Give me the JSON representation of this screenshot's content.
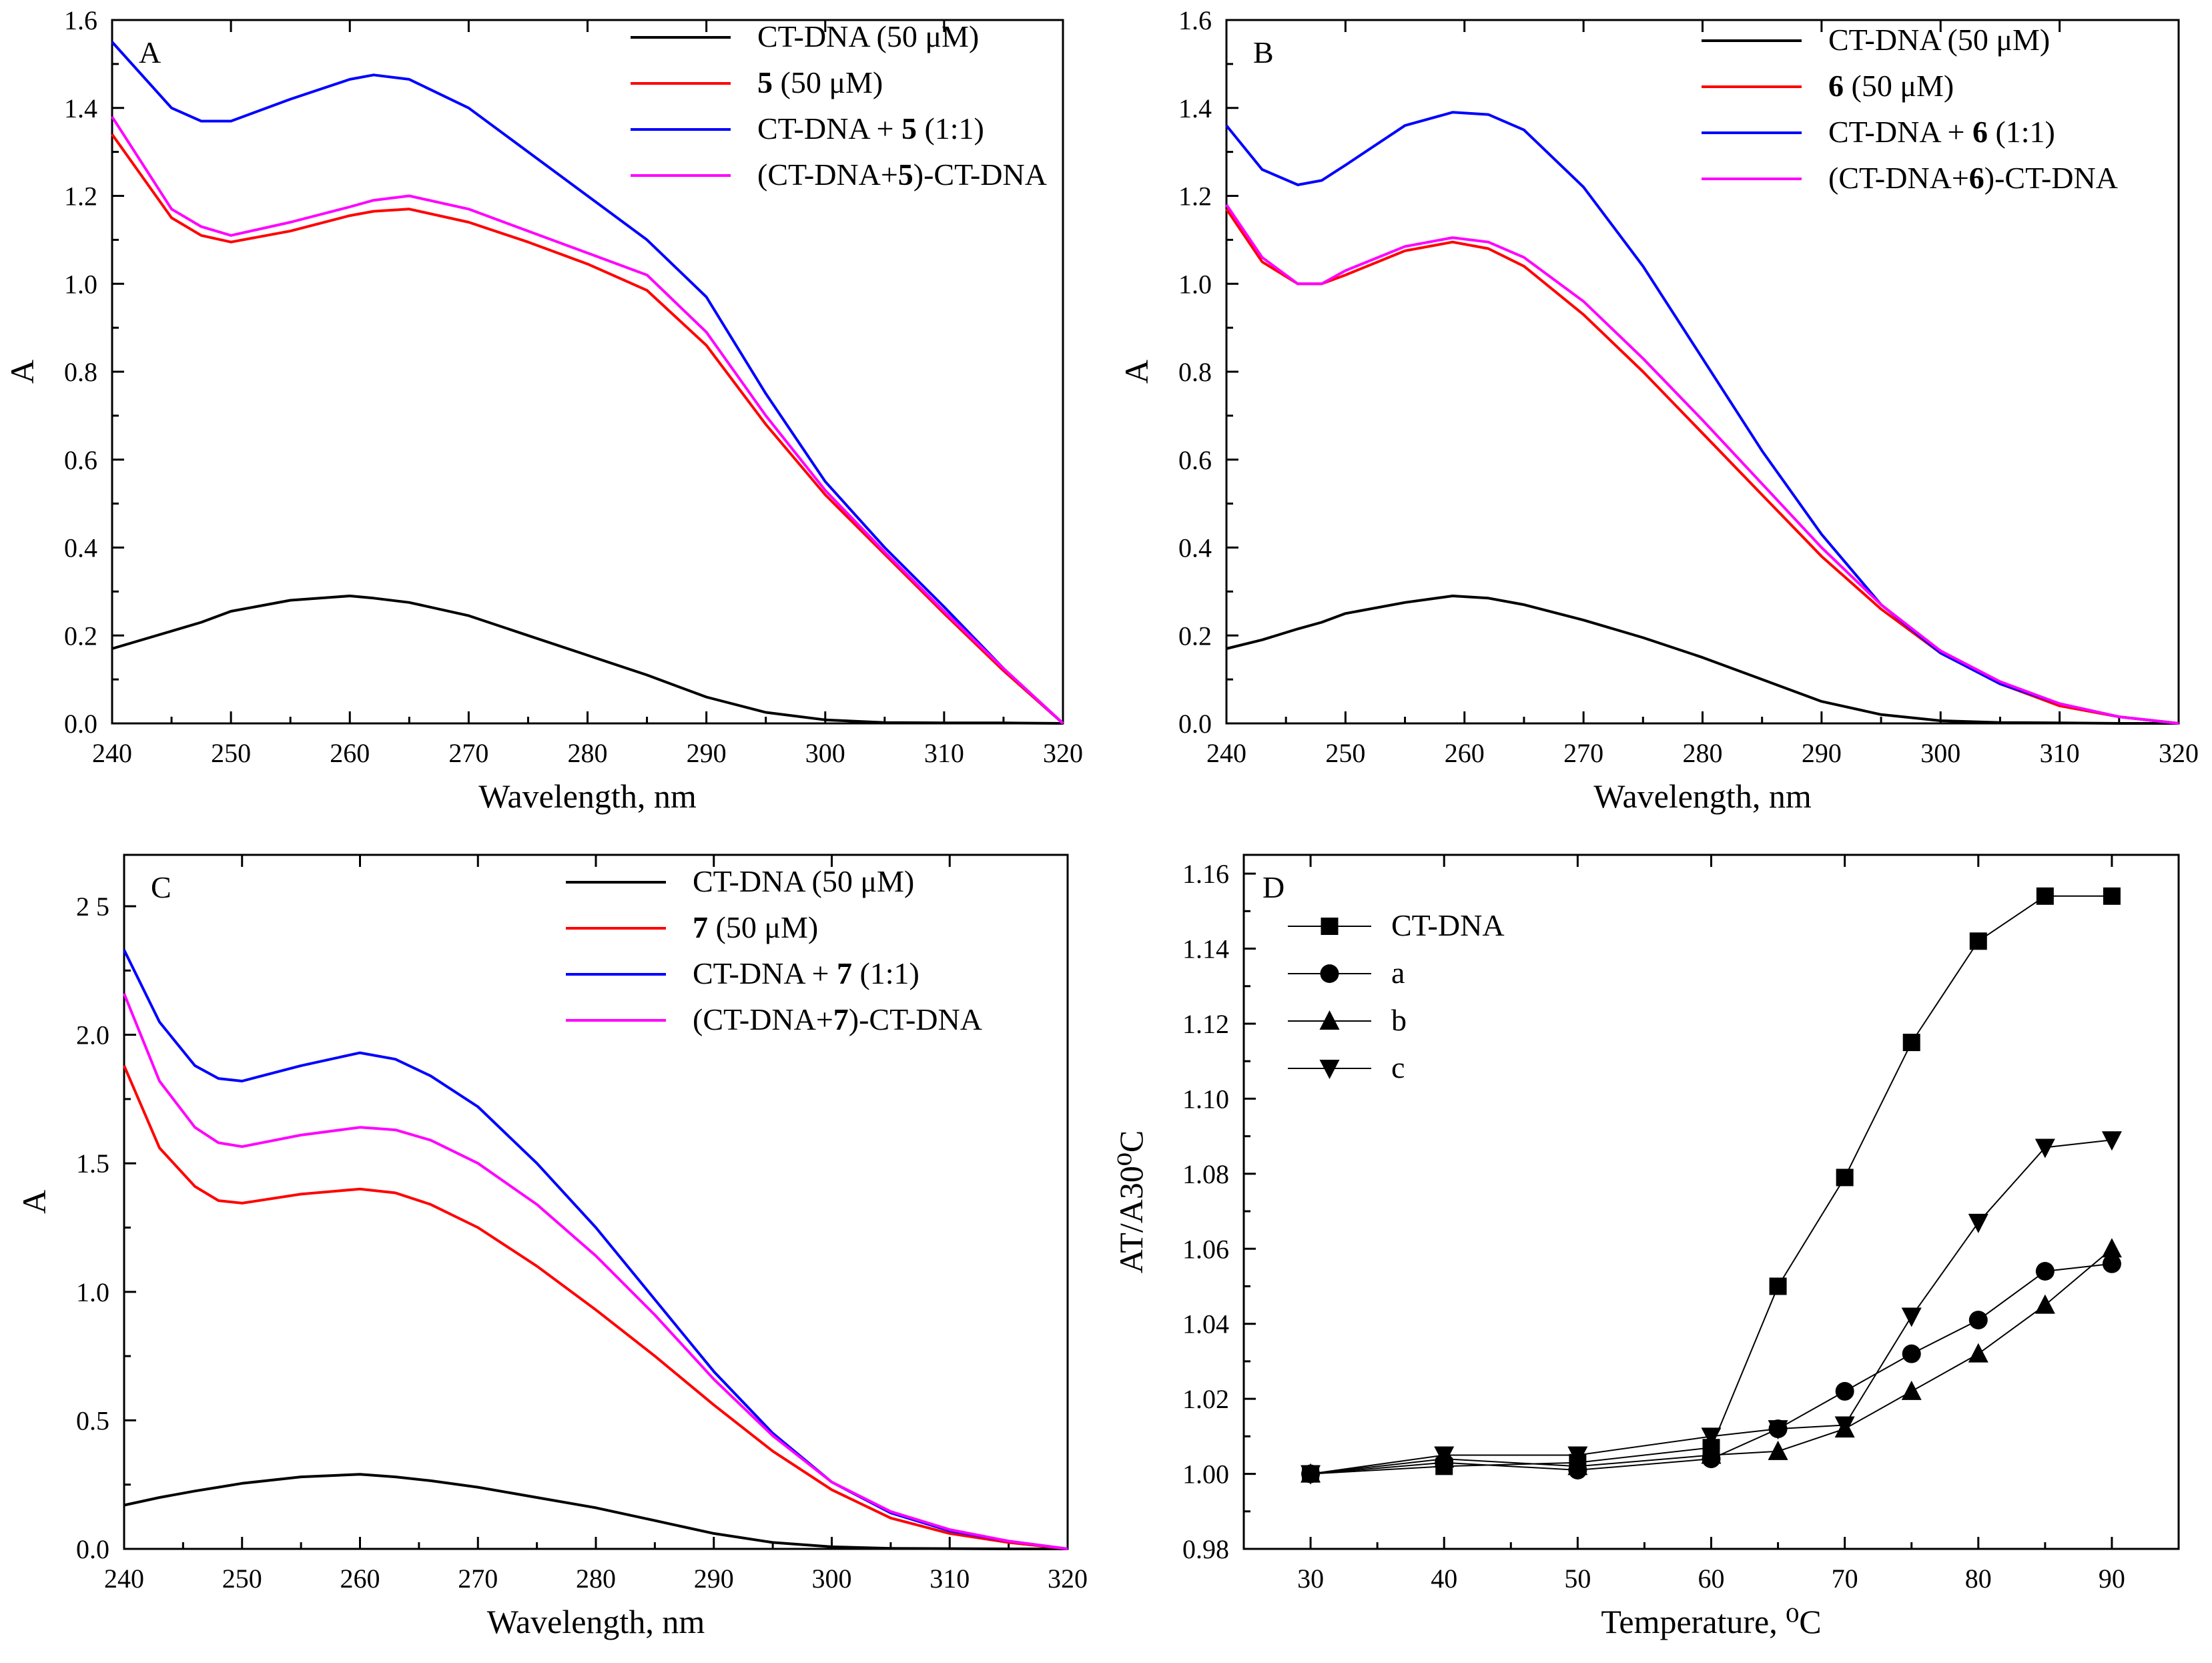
{
  "chart_data": [
    {
      "panel": "A",
      "type": "line",
      "xlabel": "Wavelength, nm",
      "ylabel": "A",
      "xlim": [
        240,
        320
      ],
      "ylim": [
        0,
        1.6
      ],
      "xticks": [
        "240",
        "250",
        "260",
        "270",
        "280",
        "290",
        "300",
        "310",
        "320"
      ],
      "yticks": [
        "0.0",
        "0.2",
        "0.4",
        "0.6",
        "0.8",
        "1.0",
        "1.2",
        "1.4",
        "1.6"
      ],
      "x": [
        240,
        245,
        247.5,
        250,
        255,
        260,
        262,
        265,
        270,
        275,
        280,
        285,
        290,
        295,
        300,
        305,
        310,
        315,
        320
      ],
      "series": [
        {
          "name": "CT-DNA (50 μM)",
          "prefix": "CT-DNA (50 μM)",
          "bold": "",
          "suffix": "",
          "color": "#000000",
          "values": [
            0.17,
            0.21,
            0.23,
            0.255,
            0.28,
            0.29,
            0.285,
            0.275,
            0.245,
            0.2,
            0.155,
            0.11,
            0.06,
            0.025,
            0.008,
            0.002,
            0.001,
            0.001,
            0.0
          ]
        },
        {
          "name": "5 (50 μM)",
          "prefix": " ",
          "bold": "5",
          "suffix": " (50 μM)",
          "color": "#ff0000",
          "values": [
            1.34,
            1.15,
            1.11,
            1.095,
            1.12,
            1.155,
            1.165,
            1.17,
            1.14,
            1.095,
            1.045,
            0.985,
            0.86,
            0.68,
            0.52,
            0.385,
            0.25,
            0.12,
            0.0
          ]
        },
        {
          "name": "CT-DNA + 5 (1:1)",
          "prefix": "CT-DNA + ",
          "bold": "5",
          "suffix": " (1:1)",
          "color": "#0000ff",
          "values": [
            1.55,
            1.4,
            1.37,
            1.37,
            1.42,
            1.465,
            1.475,
            1.465,
            1.4,
            1.3,
            1.2,
            1.1,
            0.97,
            0.75,
            0.55,
            0.4,
            0.265,
            0.125,
            0.0
          ]
        },
        {
          "name": "(CT-DNA+5)-CT-DNA",
          "prefix": "(CT-DNA+",
          "bold": "5",
          "suffix": ")-CT-DNA",
          "color": "#ff00ff",
          "values": [
            1.38,
            1.17,
            1.13,
            1.11,
            1.14,
            1.175,
            1.19,
            1.2,
            1.17,
            1.12,
            1.07,
            1.02,
            0.89,
            0.7,
            0.53,
            0.39,
            0.255,
            0.125,
            0.0
          ]
        }
      ]
    },
    {
      "panel": "B",
      "type": "line",
      "xlabel": "Wavelength, nm",
      "ylabel": "A",
      "xlim": [
        240,
        320
      ],
      "ylim": [
        0,
        1.6
      ],
      "xticks": [
        "240",
        "250",
        "260",
        "270",
        "280",
        "290",
        "300",
        "310",
        "320"
      ],
      "yticks": [
        "0.0",
        "0.2",
        "0.4",
        "0.6",
        "0.8",
        "1.0",
        "1.2",
        "1.4",
        "1.6"
      ],
      "x": [
        240,
        243,
        246,
        248,
        250,
        255,
        259,
        262,
        265,
        270,
        275,
        280,
        285,
        290,
        295,
        300,
        305,
        310,
        315,
        320
      ],
      "series": [
        {
          "name": "CT-DNA (50 μM)",
          "prefix": "CT-DNA (50 μM)",
          "bold": "",
          "suffix": "",
          "color": "#000000",
          "values": [
            0.17,
            0.19,
            0.215,
            0.23,
            0.25,
            0.275,
            0.29,
            0.285,
            0.27,
            0.235,
            0.195,
            0.15,
            0.1,
            0.05,
            0.02,
            0.006,
            0.002,
            0.001,
            0.0,
            0.0
          ]
        },
        {
          "name": "6 (50 μM)",
          "prefix": " ",
          "bold": "6",
          "suffix": " (50 μM)",
          "color": "#ff0000",
          "values": [
            1.17,
            1.05,
            1.0,
            1.0,
            1.02,
            1.075,
            1.095,
            1.08,
            1.04,
            0.93,
            0.8,
            0.66,
            0.52,
            0.38,
            0.26,
            0.16,
            0.09,
            0.04,
            0.015,
            0.0
          ]
        },
        {
          "name": "CT-DNA + 6 (1:1)",
          "prefix": "CT-DNA + ",
          "bold": "6",
          "suffix": " (1:1)",
          "color": "#0000ff",
          "values": [
            1.36,
            1.26,
            1.225,
            1.235,
            1.27,
            1.36,
            1.39,
            1.385,
            1.35,
            1.22,
            1.04,
            0.83,
            0.62,
            0.43,
            0.27,
            0.16,
            0.09,
            0.045,
            0.015,
            0.0
          ]
        },
        {
          "name": "(CT-DNA+6)-CT-DNA",
          "prefix": "(CT-DNA+",
          "bold": "6",
          "suffix": ")-CT-DNA",
          "color": "#ff00ff",
          "values": [
            1.18,
            1.06,
            1.0,
            1.0,
            1.03,
            1.085,
            1.105,
            1.095,
            1.06,
            0.96,
            0.83,
            0.69,
            0.545,
            0.4,
            0.27,
            0.165,
            0.095,
            0.045,
            0.015,
            0.0
          ]
        }
      ]
    },
    {
      "panel": "C",
      "type": "line",
      "xlabel": "Wavelength, nm",
      "ylabel": "A",
      "xlim": [
        240,
        320
      ],
      "ylim": [
        0,
        2.7
      ],
      "xticks": [
        "240",
        "250",
        "260",
        "270",
        "280",
        "290",
        "300",
        "310",
        "320"
      ],
      "yticks": [
        "0.0",
        "0.5",
        "1.0",
        "1.5",
        "2.0",
        "2 5"
      ],
      "ytick_values": [
        0,
        0.5,
        1.0,
        1.5,
        2.0,
        2.5
      ],
      "x": [
        240,
        243,
        246,
        248,
        250,
        255,
        260,
        263,
        266,
        270,
        275,
        280,
        285,
        290,
        295,
        300,
        305,
        310,
        315,
        320
      ],
      "series": [
        {
          "name": "CT-DNA (50 μM)",
          "prefix": "CT-DNA (50 μM)",
          "bold": "",
          "suffix": "",
          "color": "#000000",
          "values": [
            0.17,
            0.2,
            0.225,
            0.24,
            0.255,
            0.28,
            0.29,
            0.28,
            0.265,
            0.24,
            0.2,
            0.16,
            0.11,
            0.06,
            0.025,
            0.008,
            0.002,
            0.001,
            0.0,
            0.0
          ]
        },
        {
          "name": "7 (50 μM)",
          "prefix": " ",
          "bold": "7",
          "suffix": " (50 μM)",
          "color": "#ff0000",
          "values": [
            1.88,
            1.56,
            1.41,
            1.355,
            1.345,
            1.38,
            1.4,
            1.385,
            1.34,
            1.25,
            1.1,
            0.93,
            0.75,
            0.56,
            0.38,
            0.23,
            0.12,
            0.06,
            0.025,
            0.0
          ]
        },
        {
          "name": "CT-DNA + 7 (1:1)",
          "prefix": "CT-DNA + ",
          "bold": "7",
          "suffix": " (1:1)",
          "color": "#0000ff",
          "values": [
            2.33,
            2.05,
            1.88,
            1.83,
            1.82,
            1.88,
            1.93,
            1.905,
            1.84,
            1.72,
            1.5,
            1.25,
            0.97,
            0.69,
            0.45,
            0.26,
            0.14,
            0.07,
            0.03,
            0.0
          ]
        },
        {
          "name": "(CT-DNA+7)-CT-DNA",
          "prefix": "(CT-DNA+",
          "bold": "7",
          "suffix": ")-CT-DNA",
          "color": "#ff00ff",
          "values": [
            2.16,
            1.82,
            1.64,
            1.58,
            1.565,
            1.61,
            1.64,
            1.63,
            1.59,
            1.5,
            1.34,
            1.14,
            0.91,
            0.66,
            0.44,
            0.26,
            0.145,
            0.075,
            0.03,
            0.0
          ]
        }
      ]
    },
    {
      "panel": "D",
      "type": "line",
      "xlabel": "Temperature, ⁰C",
      "ylabel": "AT/A30⁰C",
      "xlim": [
        25,
        95
      ],
      "ylim": [
        0.98,
        1.165
      ],
      "xticks": [
        "30",
        "40",
        "50",
        "60",
        "70",
        "80",
        "90"
      ],
      "xtick_values": [
        30,
        40,
        50,
        60,
        70,
        80,
        90
      ],
      "yticks": [
        "0.98",
        "1.00",
        "1.02",
        "1.04",
        "1.06",
        "1.08",
        "1.10",
        "1.12",
        "1.14",
        "1.16"
      ],
      "ytick_values": [
        0.98,
        1.0,
        1.02,
        1.04,
        1.06,
        1.08,
        1.1,
        1.12,
        1.14,
        1.16
      ],
      "x": [
        30,
        40,
        50,
        60,
        65,
        70,
        75,
        80,
        85,
        90
      ],
      "series": [
        {
          "name": "CT-DNA",
          "marker": "square",
          "values": [
            1.0,
            1.002,
            1.003,
            1.007,
            1.05,
            1.079,
            1.115,
            1.142,
            1.154,
            1.154
          ]
        },
        {
          "name": "a",
          "marker": "circle",
          "values": [
            1.0,
            1.003,
            1.001,
            1.004,
            1.012,
            1.022,
            1.032,
            1.041,
            1.054,
            1.056
          ]
        },
        {
          "name": "b",
          "marker": "triangle-up",
          "values": [
            1.0,
            1.004,
            1.002,
            1.005,
            1.006,
            1.012,
            1.022,
            1.032,
            1.045,
            1.06
          ]
        },
        {
          "name": "c",
          "marker": "triangle-down",
          "values": [
            1.0,
            1.005,
            1.005,
            1.01,
            1.012,
            1.013,
            1.042,
            1.067,
            1.087,
            1.089
          ]
        }
      ]
    }
  ]
}
